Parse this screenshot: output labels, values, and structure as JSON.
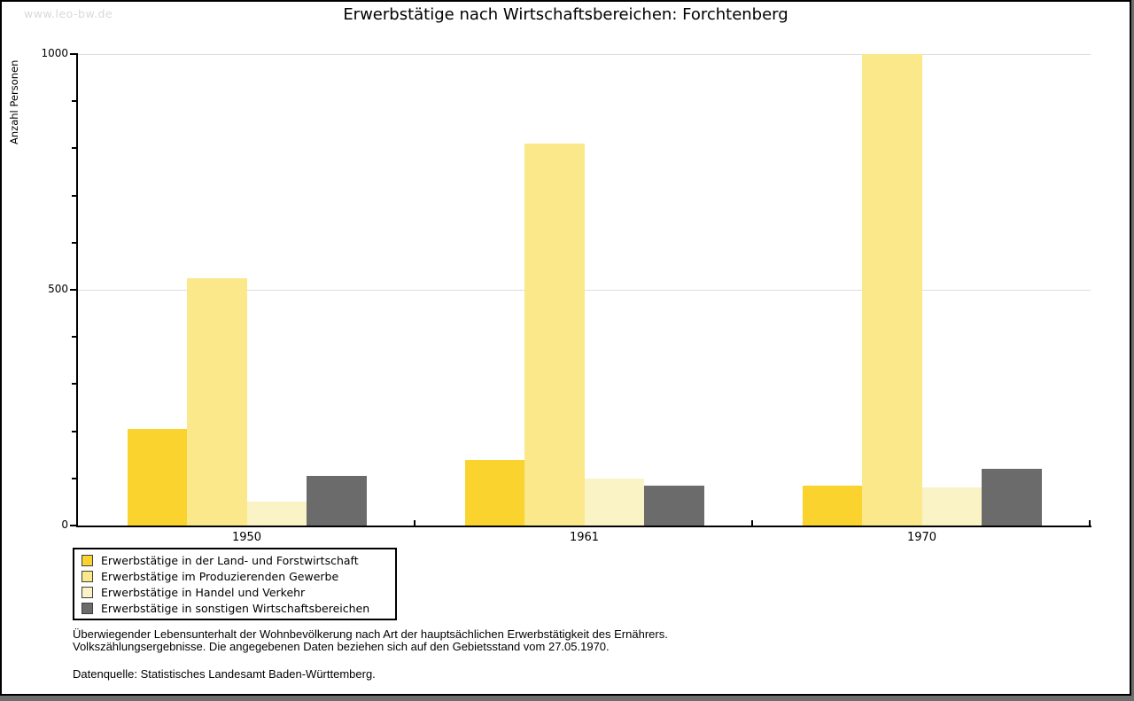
{
  "watermark": "www.leo-bw.de",
  "title": "Erwerbstätige nach Wirtschaftsbereichen: Forchtenberg",
  "chart_data": {
    "type": "bar",
    "title": "Erwerbstätige nach Wirtschaftsbereichen: Forchtenberg",
    "xlabel": "",
    "ylabel": "Anzahl Personen",
    "categories": [
      "1950",
      "1961",
      "1970"
    ],
    "series": [
      {
        "name": "Erwerbstätige in der Land- und Forstwirtschaft",
        "color": "#fbd32e",
        "values": [
          205,
          140,
          85
        ]
      },
      {
        "name": "Erwerbstätige im Produzierenden Gewerbe",
        "color": "#fbe88a",
        "values": [
          525,
          810,
          1000
        ]
      },
      {
        "name": "Erwerbstätige in Handel und Verkehr",
        "color": "#faf3c5",
        "values": [
          50,
          100,
          80
        ]
      },
      {
        "name": "Erwerbstätige in sonstigen Wirtschaftsbereichen",
        "color": "#6b6b6b",
        "values": [
          105,
          85,
          120
        ]
      }
    ],
    "ylim": [
      0,
      1000
    ],
    "ytick_labels": [
      0,
      500,
      1000
    ],
    "minor_tick_step": 100,
    "gridlines_at": [
      500,
      1000
    ],
    "grid": "horizontal-major-only",
    "legend_position": "below-left"
  },
  "footnotes": {
    "line1": "Überwiegender Lebensunterhalt der Wohnbevölkerung nach Art der hauptsächlichen Erwerbstätigkeit des Ernährers.",
    "line2": "Volkszählungsergebnisse. Die angegebenen Daten beziehen sich auf den Gebietsstand vom 27.05.1970.",
    "source": "Datenquelle: Statistisches Landesamt Baden-Württemberg."
  },
  "colors": {
    "gridline": "#dedede",
    "axis": "#000000",
    "watermark": "#d9d9d9",
    "frame_shadow": "#6e6e6e"
  }
}
